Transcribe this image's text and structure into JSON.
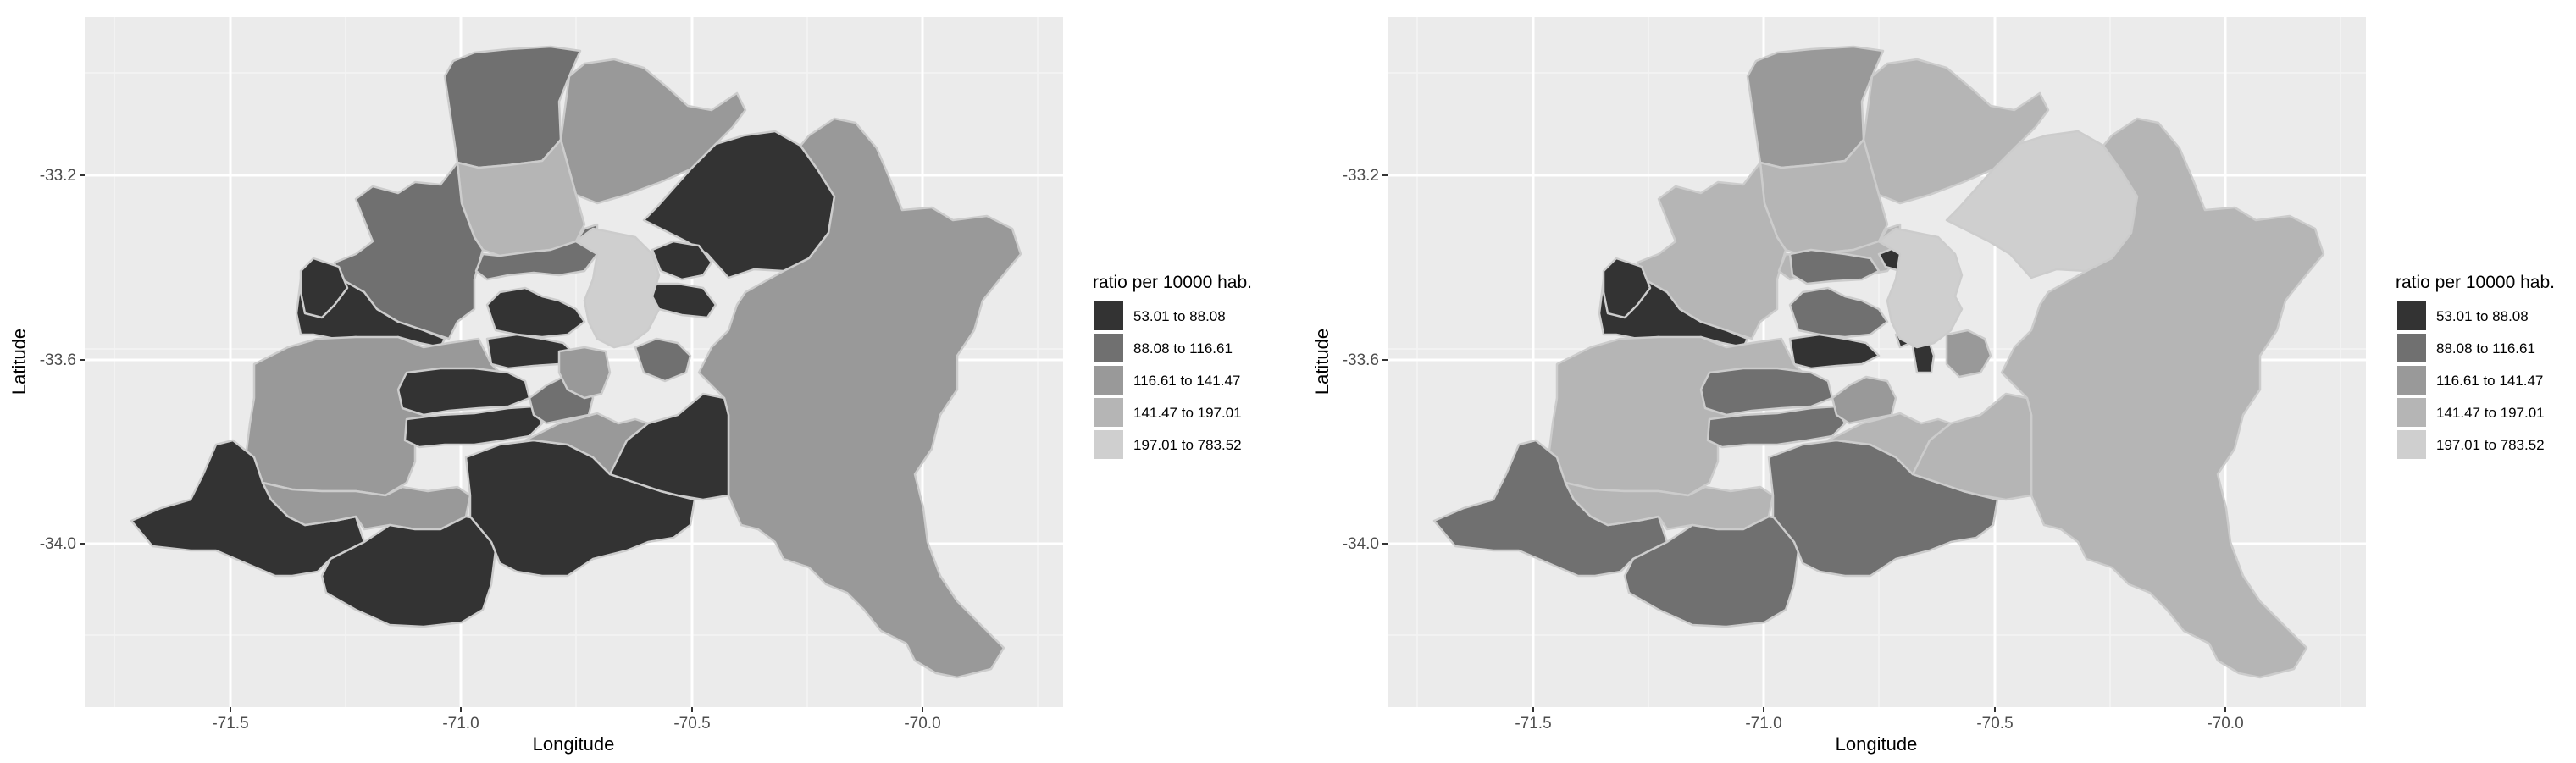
{
  "chart_data": [
    {
      "type": "choropleth",
      "xlabel": "Longitude",
      "ylabel": "Latitude",
      "xticks": [
        "-71.5",
        "-71.0",
        "-70.5",
        "-70.0"
      ],
      "yticks": [
        "-33.2",
        "-33.6",
        "-34.0"
      ],
      "xlim": [
        -71.84,
        -69.7
      ],
      "ylim": [
        -34.37,
        -32.95
      ],
      "grid": true,
      "legend": {
        "title": "ratio per 10000 hab.",
        "position": "right",
        "entries": [
          {
            "label": "53.01 to 88.08",
            "color": "#333333"
          },
          {
            "label": "88.08 to 116.61",
            "color": "#707070"
          },
          {
            "label": "116.61 to 141.47",
            "color": "#999999"
          },
          {
            "label": "141.47 to 197.01",
            "color": "#b5b5b5"
          },
          {
            "label": "197.01 to 783.52",
            "color": "#cfcfcf"
          }
        ]
      }
    },
    {
      "type": "choropleth",
      "xlabel": "Longitude",
      "ylabel": "Latitude",
      "xticks": [
        "-71.5",
        "-71.0",
        "-70.5",
        "-70.0"
      ],
      "yticks": [
        "-33.2",
        "-33.6",
        "-34.0"
      ],
      "xlim": [
        -71.84,
        -69.7
      ],
      "ylim": [
        -34.37,
        -32.95
      ],
      "grid": true,
      "legend": {
        "title": "ratio per 10000 hab.",
        "position": "right",
        "entries": [
          {
            "label": "53.01 to 88.08",
            "color": "#333333"
          },
          {
            "label": "88.08 to 116.61",
            "color": "#707070"
          },
          {
            "label": "116.61 to 141.47",
            "color": "#999999"
          },
          {
            "label": "141.47 to 197.01",
            "color": "#b5b5b5"
          },
          {
            "label": "197.01 to 783.52",
            "color": "#cfcfcf"
          }
        ]
      }
    }
  ]
}
